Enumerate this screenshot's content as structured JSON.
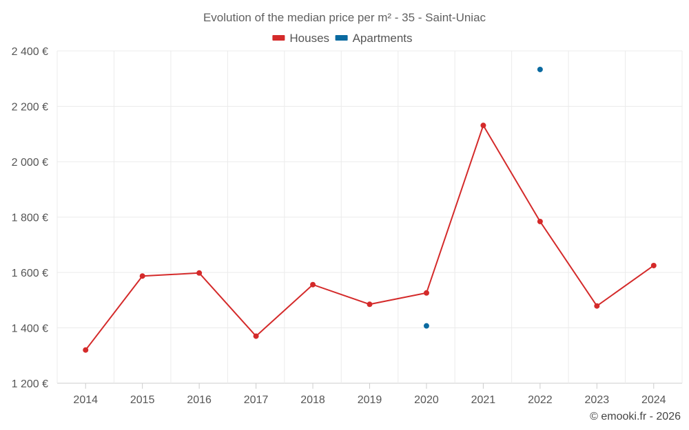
{
  "chart_data": {
    "type": "line",
    "title": "Evolution of the median price per m² - 35 - Saint-Uniac",
    "categories": [
      "2014",
      "2015",
      "2016",
      "2017",
      "2018",
      "2019",
      "2020",
      "2021",
      "2022",
      "2023",
      "2024"
    ],
    "ylim": [
      1200,
      2400
    ],
    "yticks": [
      1200,
      1400,
      1600,
      1800,
      2000,
      2200,
      2400
    ],
    "ytick_labels": [
      "1 200 €",
      "1 400 €",
      "1 600 €",
      "1 800 €",
      "2 000 €",
      "2 200 €",
      "2 400 €"
    ],
    "series": [
      {
        "name": "Houses",
        "color": "#d42a2a",
        "style": "line",
        "values": [
          1320,
          1587,
          1598,
          1370,
          1556,
          1485,
          1526,
          2131,
          1784,
          1479,
          1625
        ]
      },
      {
        "name": "Apartments",
        "color": "#0a6aa0",
        "style": "points",
        "values": [
          null,
          null,
          null,
          null,
          null,
          null,
          1407,
          null,
          2333,
          null,
          null
        ]
      }
    ],
    "legend": "top-center",
    "grid": true
  },
  "credit": "© emooki.fr - 2026"
}
